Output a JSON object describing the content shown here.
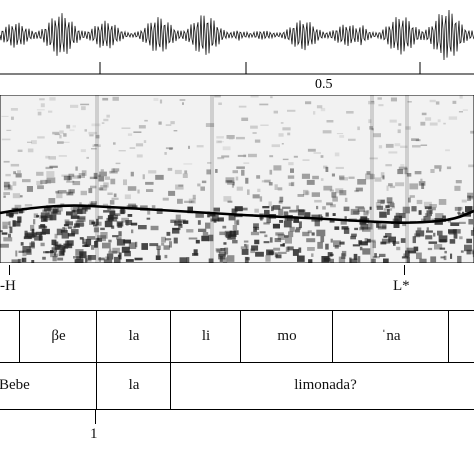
{
  "time_axis": {
    "tick_label": "0.5"
  },
  "tone_tier": {
    "labels": [
      "-H",
      "L*"
    ]
  },
  "syllable_tier": {
    "cells": [
      "",
      "βe",
      "la",
      "li",
      "mo",
      "ˈna",
      ""
    ]
  },
  "word_tier": {
    "cells": [
      "Bebe",
      "la",
      "limonada?"
    ]
  },
  "break_tier": {
    "label": "1"
  },
  "colors": {
    "ink": "#111111",
    "pitch": "#000000",
    "spectrogram_dark": "#222222",
    "background": "#ffffff"
  }
}
